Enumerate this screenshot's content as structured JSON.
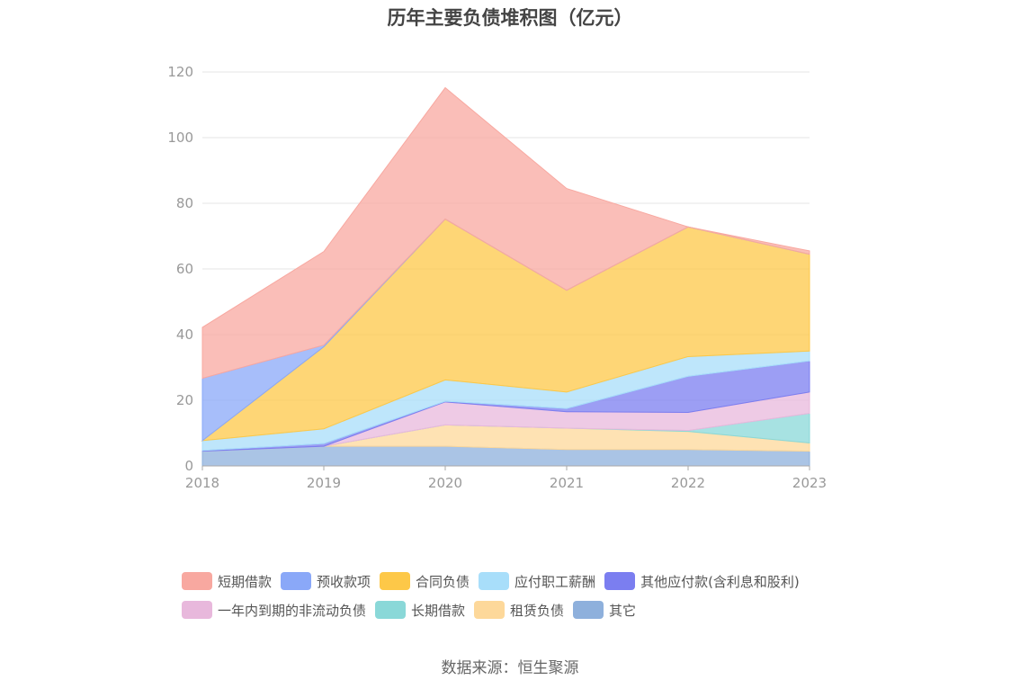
{
  "chart_data": {
    "type": "area",
    "stacked": true,
    "title": "历年主要负债堆积图（亿元）",
    "x": [
      "2018",
      "2019",
      "2020",
      "2021",
      "2022",
      "2023"
    ],
    "ylim": [
      0,
      120
    ],
    "yticks": [
      0,
      20,
      40,
      60,
      80,
      100,
      120
    ],
    "grid": true,
    "legend_position": "bottom",
    "series": [
      {
        "name": "其它",
        "color": "#8eb0dc",
        "values": [
          4.5,
          6.0,
          6.0,
          5.0,
          5.0,
          4.5
        ]
      },
      {
        "name": "租赁负债",
        "color": "#fdd89a",
        "values": [
          0,
          0,
          6.5,
          6.5,
          5.5,
          2.5
        ]
      },
      {
        "name": "长期借款",
        "color": "#8ad8d8",
        "values": [
          0,
          0,
          0,
          0,
          0.3,
          9.0
        ]
      },
      {
        "name": "一年内到期的非流动负债",
        "color": "#e8b8dc",
        "values": [
          0,
          0,
          7.0,
          5.0,
          5.5,
          6.5
        ]
      },
      {
        "name": "其他应付款(含利息和股利)",
        "color": "#7b7ef0",
        "values": [
          0.2,
          0.8,
          0.2,
          1.0,
          11.0,
          9.5
        ]
      },
      {
        "name": "应付职工薪酬",
        "color": "#a8defa",
        "values": [
          3.0,
          4.5,
          6.5,
          5.0,
          6.0,
          3.0
        ]
      },
      {
        "name": "合同负债",
        "color": "#fdc848",
        "values": [
          0,
          25.0,
          49.0,
          31.0,
          39.5,
          29.5
        ]
      },
      {
        "name": "预收款项",
        "color": "#8aa8f8",
        "values": [
          19.0,
          0.5,
          0,
          0,
          0,
          0
        ]
      },
      {
        "name": "短期借款",
        "color": "#f8a8a0",
        "values": [
          15.5,
          28.5,
          40.0,
          31.0,
          0,
          1.0
        ]
      }
    ]
  },
  "legend_rows": [
    [
      {
        "name": "短期借款",
        "color": "#f8a8a0"
      },
      {
        "name": "预收款项",
        "color": "#8aa8f8"
      },
      {
        "name": "合同负债",
        "color": "#fdc848"
      },
      {
        "name": "应付职工薪酬",
        "color": "#a8defa"
      },
      {
        "name": "其他应付款(含利息和股利)",
        "color": "#7b7ef0"
      }
    ],
    [
      {
        "name": "一年内到期的非流动负债",
        "color": "#e8b8dc"
      },
      {
        "name": "长期借款",
        "color": "#8ad8d8"
      },
      {
        "name": "租赁负债",
        "color": "#fdd89a"
      },
      {
        "name": "其它",
        "color": "#8eb0dc"
      }
    ]
  ],
  "source": "数据来源：恒生聚源"
}
